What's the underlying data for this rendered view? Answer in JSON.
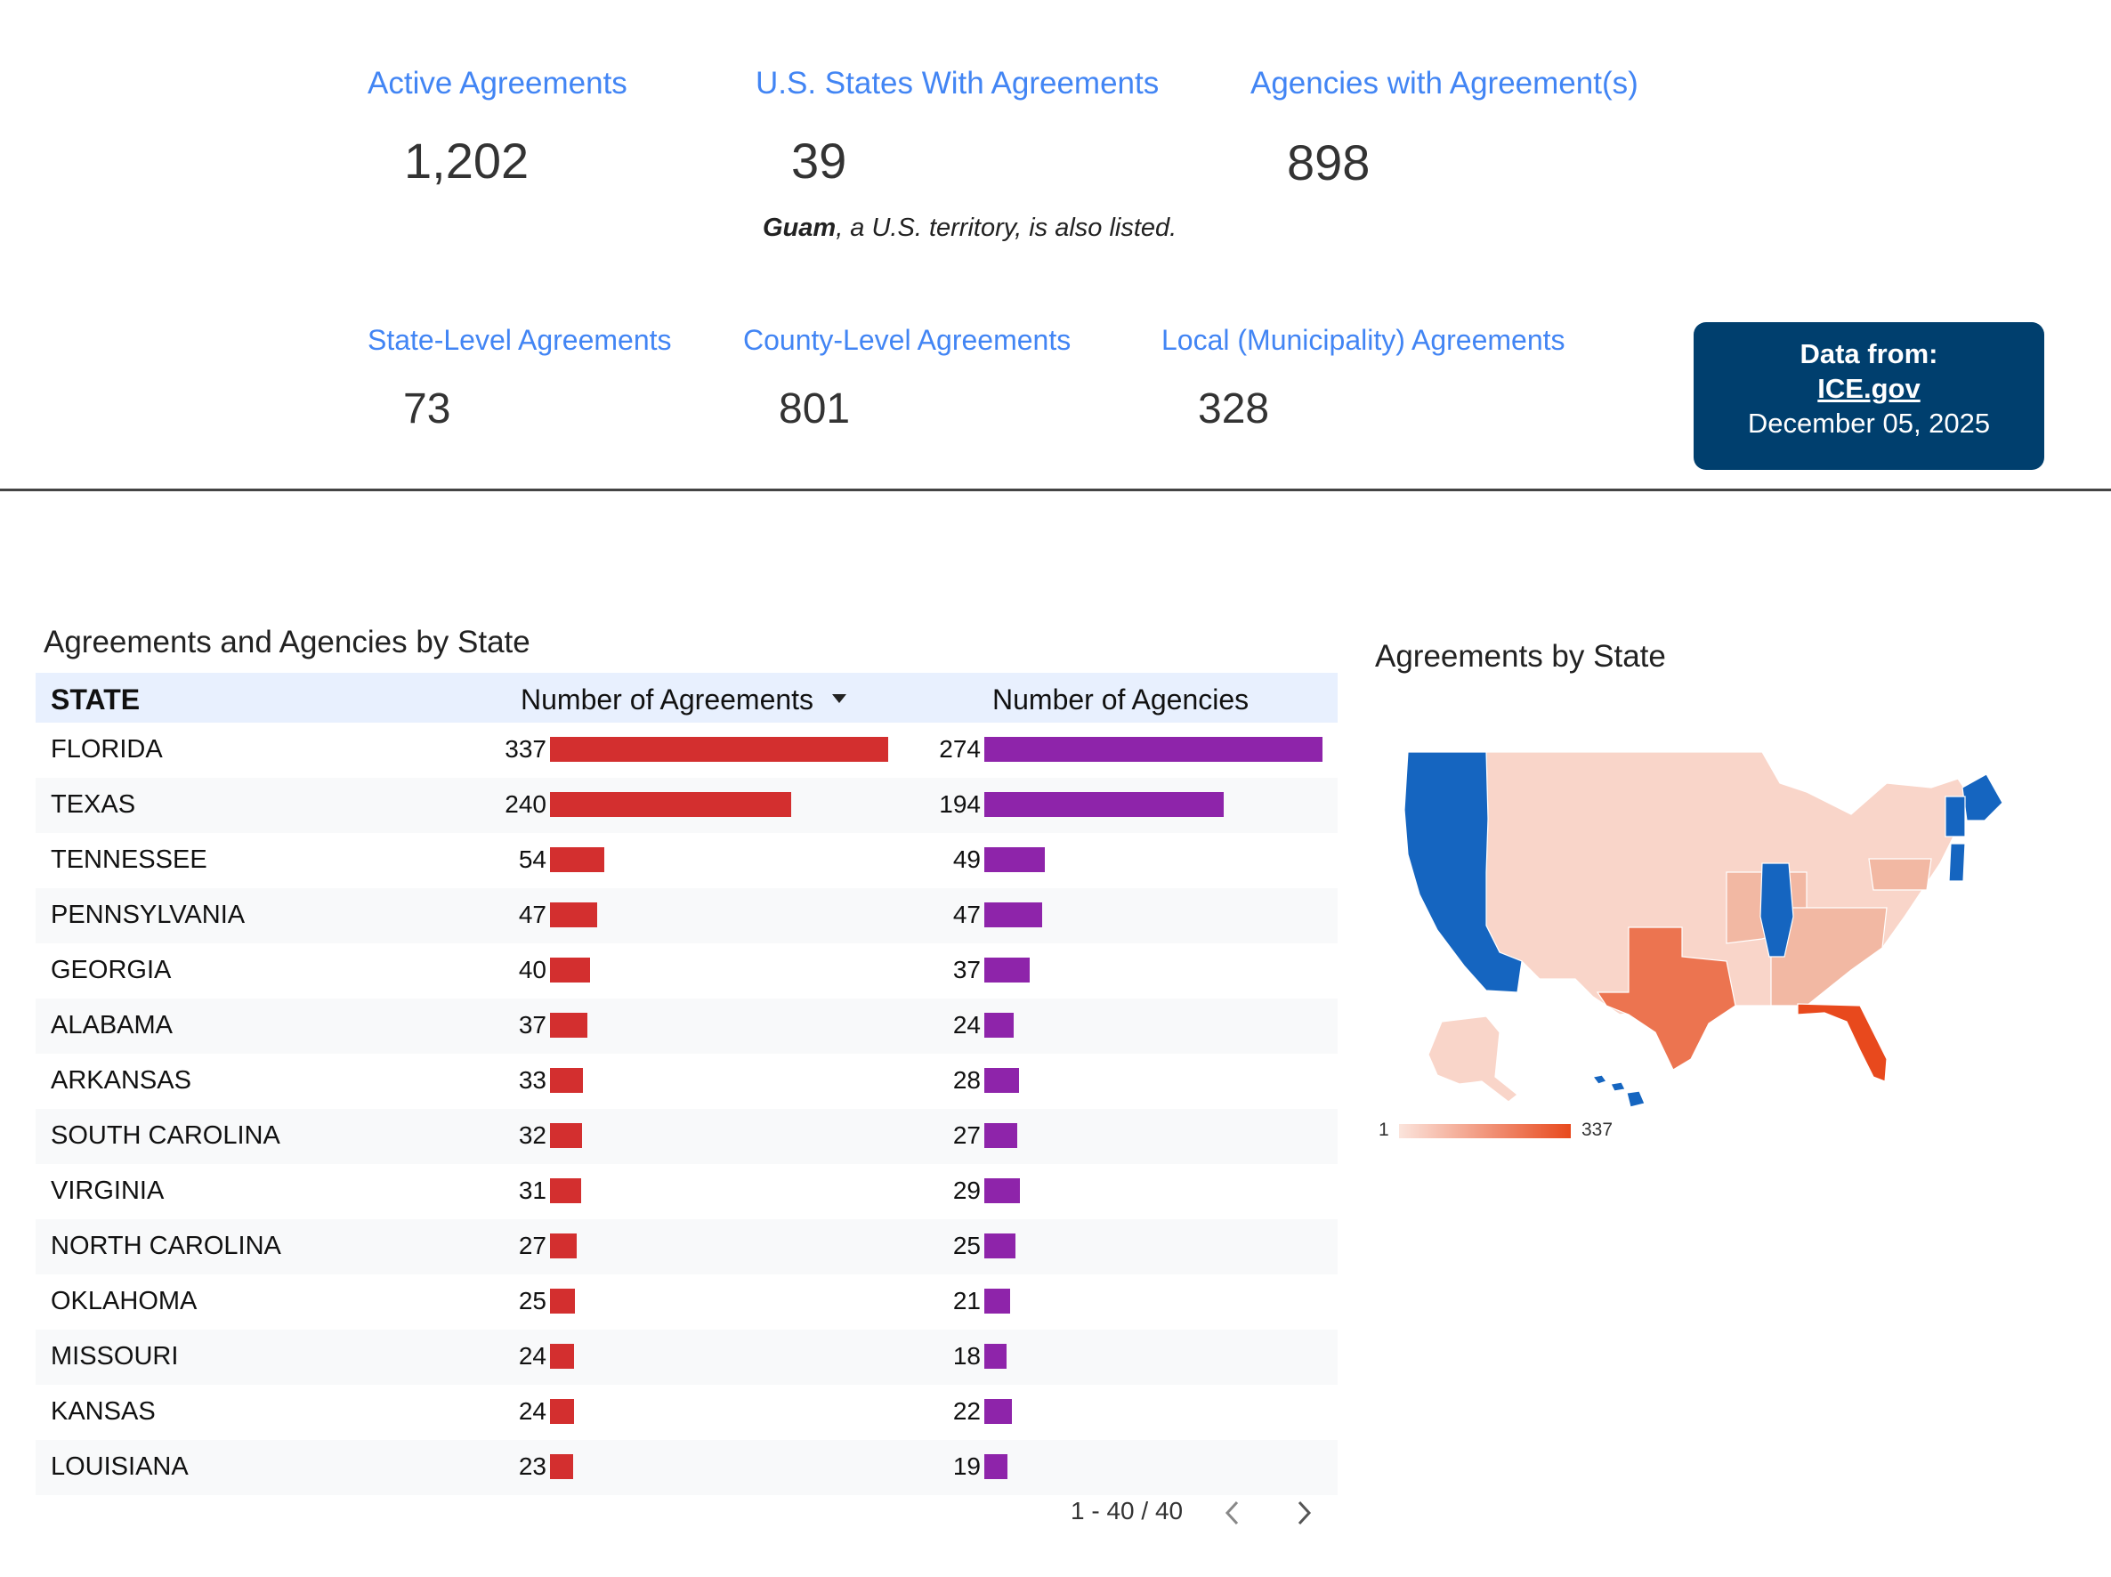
{
  "kpis": {
    "active_agreements": {
      "label": "Active Agreements",
      "value": "1,202"
    },
    "states_with_agreements": {
      "label": "U.S. States With Agreements",
      "value": "39",
      "note_bold": "Guam",
      "note_rest": ", a U.S. territory, is also listed."
    },
    "agencies_with_agreements": {
      "label": "Agencies with Agreement(s)",
      "value": "898"
    },
    "state_level": {
      "label": "State-Level Agreements",
      "value": "73"
    },
    "county_level": {
      "label": "County-Level Agreements",
      "value": "801"
    },
    "local_level": {
      "label": "Local (Municipality) Agreements",
      "value": "328"
    }
  },
  "source": {
    "label": "Data from:",
    "link": "ICE.gov",
    "date": "December 05, 2025"
  },
  "table": {
    "title": "Agreements and Agencies by State",
    "columns": {
      "state": "STATE",
      "agreements": "Number of Agreements",
      "agencies": "Number of Agencies"
    },
    "bar_colors": {
      "agreements": "#d32f2f",
      "agencies": "#8e24aa"
    },
    "rows": [
      {
        "state": "FLORIDA",
        "agreements": 337,
        "agencies": 274
      },
      {
        "state": "TEXAS",
        "agreements": 240,
        "agencies": 194
      },
      {
        "state": "TENNESSEE",
        "agreements": 54,
        "agencies": 49
      },
      {
        "state": "PENNSYLVANIA",
        "agreements": 47,
        "agencies": 47
      },
      {
        "state": "GEORGIA",
        "agreements": 40,
        "agencies": 37
      },
      {
        "state": "ALABAMA",
        "agreements": 37,
        "agencies": 24
      },
      {
        "state": "ARKANSAS",
        "agreements": 33,
        "agencies": 28
      },
      {
        "state": "SOUTH CAROLINA",
        "agreements": 32,
        "agencies": 27
      },
      {
        "state": "VIRGINIA",
        "agreements": 31,
        "agencies": 29
      },
      {
        "state": "NORTH CAROLINA",
        "agreements": 27,
        "agencies": 25
      },
      {
        "state": "OKLAHOMA",
        "agreements": 25,
        "agencies": 21
      },
      {
        "state": "MISSOURI",
        "agreements": 24,
        "agencies": 18
      },
      {
        "state": "KANSAS",
        "agreements": 24,
        "agencies": 22
      },
      {
        "state": "LOUISIANA",
        "agreements": 23,
        "agencies": 19
      }
    ],
    "pagination": "1 - 40 / 40"
  },
  "map": {
    "title": "Agreements by State",
    "legend_min": "1",
    "legend_max": "337",
    "colors": {
      "no_agreement": "#1565c0",
      "low": "#f9d5c9",
      "mid": "#f2b8a3",
      "high_tx": "#ec7450",
      "high_fl": "#e8491d"
    }
  }
}
